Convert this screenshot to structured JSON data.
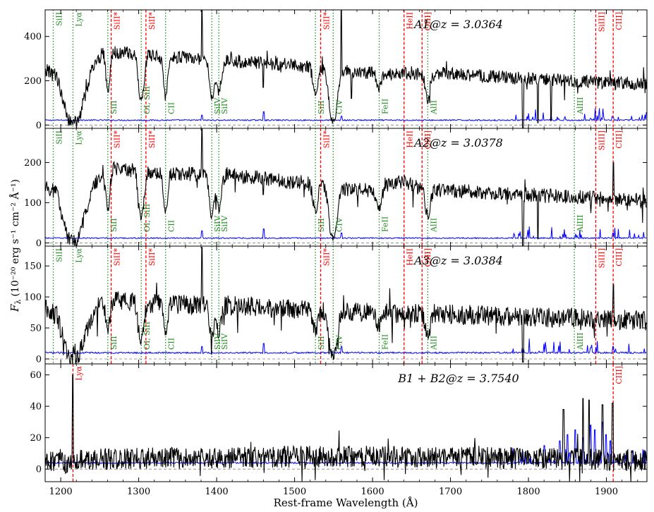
{
  "figure": {
    "xlabel": "Rest-frame Wavelength (Å)",
    "ylabel_main": "F",
    "ylabel_sub": "λ",
    "ylabel_units": "(10⁻²⁰ erg s⁻¹ cm⁻² Å⁻¹)",
    "colors": {
      "spectrum": "#000000",
      "error": "#0000ff",
      "ism_line": "#228b22",
      "emission_line": "#ff0000",
      "zero_line": "#808080"
    }
  },
  "chart_data": [
    {
      "type": "line",
      "id": "A1",
      "title": "A1@z = 3.0364",
      "xlim": [
        1180,
        1952
      ],
      "ylim": [
        -15,
        520
      ],
      "yticks": [
        0,
        200,
        400
      ],
      "xticks": [
        1200,
        1300,
        1400,
        1500,
        1600,
        1700,
        1800,
        1900
      ],
      "continuum": [
        [
          1180,
          250
        ],
        [
          1195,
          220
        ],
        [
          1210,
          20
        ],
        [
          1222,
          10
        ],
        [
          1240,
          250
        ],
        [
          1255,
          335
        ],
        [
          1265,
          330
        ],
        [
          1300,
          320
        ],
        [
          1330,
          310
        ],
        [
          1380,
          300
        ],
        [
          1440,
          285
        ],
        [
          1500,
          270
        ],
        [
          1560,
          245
        ],
        [
          1600,
          235
        ],
        [
          1700,
          230
        ],
        [
          1800,
          210
        ],
        [
          1900,
          190
        ],
        [
          1952,
          185
        ]
      ],
      "noise": 30,
      "absorptions": [
        [
          1260.4,
          0.55,
          2.5
        ],
        [
          1302.2,
          0.5,
          3
        ],
        [
          1304.4,
          0.4,
          3
        ],
        [
          1334.5,
          0.6,
          2.5
        ],
        [
          1393.8,
          0.6,
          3
        ],
        [
          1402.8,
          0.5,
          3
        ],
        [
          1526.7,
          0.45,
          3
        ],
        [
          1548.2,
          0.8,
          4
        ],
        [
          1550.8,
          0.75,
          4
        ],
        [
          1608.5,
          0.3,
          3
        ],
        [
          1670.8,
          0.5,
          3
        ]
      ],
      "spikes": [
        [
          1381,
          520
        ],
        [
          1460,
          170
        ],
        [
          1560,
          520
        ],
        [
          1542,
          180
        ],
        [
          1573,
          120
        ]
      ],
      "dips": [
        [
          1793,
          -20
        ],
        [
          1812,
          10
        ],
        [
          1829,
          20
        ]
      ],
      "error_level": 22,
      "error_spikes": [
        [
          1381,
          45
        ],
        [
          1460,
          60
        ],
        [
          1560,
          40
        ],
        [
          1880,
          30
        ],
        [
          1909,
          35
        ]
      ],
      "lines": [
        {
          "label": "SiII",
          "wave": 1190.4,
          "kind": "ism",
          "pos": "top"
        },
        {
          "label": "Lyα",
          "wave": 1215.7,
          "kind": "ism",
          "pos": "top"
        },
        {
          "label": "SiII",
          "wave": 1260.4,
          "kind": "ism",
          "pos": "bottom"
        },
        {
          "label": "SiII*",
          "wave": 1264.7,
          "kind": "emission",
          "pos": "top"
        },
        {
          "label": "OI, SiII",
          "wave": 1303.3,
          "kind": "ism",
          "pos": "bottom"
        },
        {
          "label": "SiII*",
          "wave": 1309.3,
          "kind": "emission",
          "pos": "top"
        },
        {
          "label": "CII",
          "wave": 1334.5,
          "kind": "ism",
          "pos": "bottom"
        },
        {
          "label": "SiIV",
          "wave": 1393.8,
          "kind": "ism",
          "pos": "bottom"
        },
        {
          "label": "SiIV",
          "wave": 1402.8,
          "kind": "ism",
          "pos": "bottom"
        },
        {
          "label": "SiII",
          "wave": 1526.7,
          "kind": "ism",
          "pos": "bottom"
        },
        {
          "label": "SiII*",
          "wave": 1533.4,
          "kind": "emission",
          "pos": "top"
        },
        {
          "label": "CIV",
          "wave": 1549.5,
          "kind": "ism",
          "pos": "bottom"
        },
        {
          "label": "FeII",
          "wave": 1608.5,
          "kind": "ism",
          "pos": "bottom"
        },
        {
          "label": "HeII",
          "wave": 1640.4,
          "kind": "emission",
          "pos": "top"
        },
        {
          "label": "OIII]",
          "wave": 1663.5,
          "kind": "emission",
          "pos": "top"
        },
        {
          "label": "AlII",
          "wave": 1670.8,
          "kind": "ism",
          "pos": "bottom"
        },
        {
          "label": "AlIII",
          "wave": 1858.8,
          "kind": "ism",
          "pos": "bottom"
        },
        {
          "label": "SiIII]",
          "wave": 1886.3,
          "kind": "emission",
          "pos": "top"
        },
        {
          "label": "CIII]",
          "wave": 1908.7,
          "kind": "emission",
          "pos": "top"
        }
      ]
    },
    {
      "type": "line",
      "id": "A2",
      "title": "A2@z = 3.0378",
      "xlim": [
        1180,
        1952
      ],
      "ylim": [
        -8,
        285
      ],
      "yticks": [
        0,
        100,
        200
      ],
      "xticks": [
        1200,
        1300,
        1400,
        1500,
        1600,
        1700,
        1800,
        1900
      ],
      "continuum": [
        [
          1180,
          140
        ],
        [
          1195,
          125
        ],
        [
          1210,
          10
        ],
        [
          1222,
          5
        ],
        [
          1240,
          130
        ],
        [
          1255,
          185
        ],
        [
          1265,
          185
        ],
        [
          1300,
          180
        ],
        [
          1330,
          175
        ],
        [
          1380,
          170
        ],
        [
          1440,
          165
        ],
        [
          1500,
          150
        ],
        [
          1540,
          145
        ],
        [
          1560,
          135
        ],
        [
          1600,
          130
        ],
        [
          1640,
          155
        ],
        [
          1660,
          135
        ],
        [
          1700,
          130
        ],
        [
          1800,
          120
        ],
        [
          1900,
          110
        ],
        [
          1952,
          105
        ]
      ],
      "noise": 18,
      "absorptions": [
        [
          1260.4,
          0.55,
          2.5
        ],
        [
          1302.2,
          0.5,
          3
        ],
        [
          1304.4,
          0.4,
          3
        ],
        [
          1334.5,
          0.6,
          2.5
        ],
        [
          1393.8,
          0.6,
          3
        ],
        [
          1402.8,
          0.5,
          3
        ],
        [
          1526.7,
          0.45,
          3
        ],
        [
          1548.2,
          0.8,
          4
        ],
        [
          1550.8,
          0.75,
          4
        ],
        [
          1608.5,
          0.4,
          3
        ],
        [
          1670.8,
          0.5,
          3
        ]
      ],
      "spikes": [
        [
          1381,
          285
        ],
        [
          1460,
          120
        ],
        [
          1909,
          200
        ]
      ],
      "dips": [
        [
          1793,
          -10
        ],
        [
          1812,
          10
        ]
      ],
      "error_level": 12,
      "error_spikes": [
        [
          1381,
          30
        ],
        [
          1460,
          35
        ],
        [
          1560,
          25
        ],
        [
          1909,
          25
        ]
      ],
      "lines": [
        {
          "label": "SiII",
          "wave": 1190.4,
          "kind": "ism",
          "pos": "top"
        },
        {
          "label": "Lyα",
          "wave": 1215.7,
          "kind": "ism",
          "pos": "top"
        },
        {
          "label": "SiII",
          "wave": 1260.4,
          "kind": "ism",
          "pos": "bottom"
        },
        {
          "label": "SiII*",
          "wave": 1264.7,
          "kind": "emission",
          "pos": "top"
        },
        {
          "label": "OI, SiII",
          "wave": 1303.3,
          "kind": "ism",
          "pos": "bottom"
        },
        {
          "label": "SiII*",
          "wave": 1309.3,
          "kind": "emission",
          "pos": "top"
        },
        {
          "label": "CII",
          "wave": 1334.5,
          "kind": "ism",
          "pos": "bottom"
        },
        {
          "label": "SiIV",
          "wave": 1393.8,
          "kind": "ism",
          "pos": "bottom"
        },
        {
          "label": "SiIV",
          "wave": 1402.8,
          "kind": "ism",
          "pos": "bottom"
        },
        {
          "label": "SiII",
          "wave": 1526.7,
          "kind": "ism",
          "pos": "bottom"
        },
        {
          "label": "SiII*",
          "wave": 1533.4,
          "kind": "emission",
          "pos": "top"
        },
        {
          "label": "CIV",
          "wave": 1549.5,
          "kind": "ism",
          "pos": "bottom"
        },
        {
          "label": "FeII",
          "wave": 1608.5,
          "kind": "ism",
          "pos": "bottom"
        },
        {
          "label": "HeII",
          "wave": 1640.4,
          "kind": "emission",
          "pos": "top"
        },
        {
          "label": "OIII]",
          "wave": 1663.5,
          "kind": "emission",
          "pos": "top"
        },
        {
          "label": "AlII",
          "wave": 1670.8,
          "kind": "ism",
          "pos": "bottom"
        },
        {
          "label": "AlIII",
          "wave": 1858.8,
          "kind": "ism",
          "pos": "bottom"
        },
        {
          "label": "SiIII]",
          "wave": 1886.3,
          "kind": "emission",
          "pos": "top"
        },
        {
          "label": "CIII]",
          "wave": 1908.7,
          "kind": "emission",
          "pos": "top"
        }
      ]
    },
    {
      "type": "line",
      "id": "A3",
      "title": "A3@z = 3.0384",
      "xlim": [
        1180,
        1952
      ],
      "ylim": [
        -8,
        182
      ],
      "yticks": [
        0,
        50,
        100,
        150
      ],
      "xticks": [
        1200,
        1300,
        1400,
        1500,
        1600,
        1700,
        1800,
        1900
      ],
      "continuum": [
        [
          1180,
          80
        ],
        [
          1195,
          70
        ],
        [
          1210,
          5
        ],
        [
          1222,
          5
        ],
        [
          1240,
          70
        ],
        [
          1255,
          95
        ],
        [
          1300,
          90
        ],
        [
          1380,
          88
        ],
        [
          1440,
          85
        ],
        [
          1500,
          80
        ],
        [
          1560,
          78
        ],
        [
          1600,
          75
        ],
        [
          1700,
          72
        ],
        [
          1800,
          68
        ],
        [
          1900,
          65
        ],
        [
          1952,
          62
        ]
      ],
      "noise": 16,
      "absorptions": [
        [
          1260.4,
          0.55,
          2.5
        ],
        [
          1302.2,
          0.5,
          3
        ],
        [
          1304.4,
          0.4,
          3
        ],
        [
          1334.5,
          0.6,
          2.5
        ],
        [
          1393.8,
          0.6,
          3
        ],
        [
          1402.8,
          0.5,
          3
        ],
        [
          1526.7,
          0.45,
          3
        ],
        [
          1548.2,
          0.8,
          4
        ],
        [
          1550.8,
          0.75,
          4
        ],
        [
          1608.5,
          0.3,
          3
        ],
        [
          1670.8,
          0.5,
          3
        ]
      ],
      "spikes": [
        [
          1381,
          180
        ],
        [
          1460,
          85
        ],
        [
          1909,
          120
        ]
      ],
      "dips": [
        [
          1793,
          -5
        ]
      ],
      "error_level": 10,
      "error_spikes": [
        [
          1381,
          20
        ],
        [
          1460,
          25
        ],
        [
          1560,
          20
        ],
        [
          1880,
          18
        ],
        [
          1909,
          20
        ]
      ],
      "lines": [
        {
          "label": "SiII",
          "wave": 1190.4,
          "kind": "ism",
          "pos": "top"
        },
        {
          "label": "Lyα",
          "wave": 1215.7,
          "kind": "ism",
          "pos": "top"
        },
        {
          "label": "SiII",
          "wave": 1260.4,
          "kind": "ism",
          "pos": "bottom"
        },
        {
          "label": "SiII*",
          "wave": 1264.7,
          "kind": "emission",
          "pos": "top"
        },
        {
          "label": "OI, SiII",
          "wave": 1303.3,
          "kind": "ism",
          "pos": "bottom"
        },
        {
          "label": "SiII*",
          "wave": 1309.3,
          "kind": "emission",
          "pos": "top"
        },
        {
          "label": "CII",
          "wave": 1334.5,
          "kind": "ism",
          "pos": "bottom"
        },
        {
          "label": "SiIV",
          "wave": 1393.8,
          "kind": "ism",
          "pos": "bottom"
        },
        {
          "label": "SiIV",
          "wave": 1402.8,
          "kind": "ism",
          "pos": "bottom"
        },
        {
          "label": "SiII",
          "wave": 1526.7,
          "kind": "ism",
          "pos": "bottom"
        },
        {
          "label": "SiII*",
          "wave": 1533.4,
          "kind": "emission",
          "pos": "top"
        },
        {
          "label": "CIV",
          "wave": 1549.5,
          "kind": "ism",
          "pos": "bottom"
        },
        {
          "label": "FeII",
          "wave": 1608.5,
          "kind": "ism",
          "pos": "bottom"
        },
        {
          "label": "HeII",
          "wave": 1640.4,
          "kind": "emission",
          "pos": "top"
        },
        {
          "label": "OIII]",
          "wave": 1663.5,
          "kind": "emission",
          "pos": "top"
        },
        {
          "label": "AlII",
          "wave": 1670.8,
          "kind": "ism",
          "pos": "bottom"
        },
        {
          "label": "AlIII",
          "wave": 1858.8,
          "kind": "ism",
          "pos": "bottom"
        },
        {
          "label": "SiIII]",
          "wave": 1886.3,
          "kind": "emission",
          "pos": "top"
        },
        {
          "label": "CIII]",
          "wave": 1908.7,
          "kind": "emission",
          "pos": "top"
        }
      ]
    },
    {
      "type": "line",
      "id": "B",
      "title": "B1 + B2@z = 3.7540",
      "xlim": [
        1180,
        1952
      ],
      "ylim": [
        -8,
        67
      ],
      "yticks": [
        0,
        20,
        40,
        60
      ],
      "xticks": [
        1200,
        1300,
        1400,
        1500,
        1600,
        1700,
        1800,
        1900
      ],
      "continuum": [
        [
          1180,
          5
        ],
        [
          1210,
          4
        ],
        [
          1230,
          6
        ],
        [
          1300,
          7
        ],
        [
          1400,
          7
        ],
        [
          1500,
          8
        ],
        [
          1600,
          8
        ],
        [
          1700,
          7
        ],
        [
          1800,
          7
        ],
        [
          1900,
          6
        ],
        [
          1952,
          5
        ]
      ],
      "noise": 7,
      "absorptions": [],
      "spikes": [
        [
          1215.7,
          60
        ],
        [
          1908,
          42
        ],
        [
          1870,
          45
        ],
        [
          1878,
          44
        ],
        [
          1895,
          41
        ],
        [
          1845,
          38
        ]
      ],
      "dips": [],
      "error_level": 4,
      "error_spikes": [
        [
          1840,
          18
        ],
        [
          1860,
          25
        ],
        [
          1870,
          20
        ],
        [
          1885,
          25
        ],
        [
          1895,
          30
        ],
        [
          1900,
          22
        ],
        [
          1850,
          22
        ],
        [
          1820,
          15
        ],
        [
          1880,
          28
        ],
        [
          1905,
          18
        ]
      ],
      "lines": [
        {
          "label": "Lyα",
          "wave": 1215.7,
          "kind": "emission",
          "pos": "top"
        },
        {
          "label": "CIII]",
          "wave": 1908.7,
          "kind": "emission",
          "pos": "top"
        }
      ]
    }
  ]
}
